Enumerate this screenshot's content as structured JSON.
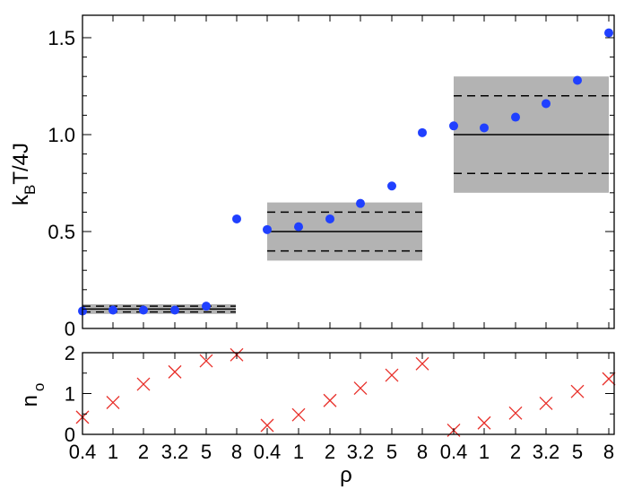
{
  "chart_data": [
    {
      "type": "scatter",
      "ylabel_main": "k",
      "ylabel_sub": "B",
      "ylabel_tail": "T/4J",
      "ylim": [
        0,
        1.5
      ],
      "yticks": [
        "0",
        "0.5",
        "1.0",
        "1.5"
      ],
      "series_color": "#2040ff",
      "groups": [
        {
          "x": [
            "0.4",
            "1",
            "2",
            "3.2",
            "5",
            "8"
          ],
          "values": [
            0.09,
            0.095,
            0.095,
            0.095,
            0.115,
            0.565
          ],
          "band": {
            "low": 0.075,
            "high": 0.125,
            "solid": 0.1,
            "dash_low": 0.085,
            "dash_high": 0.115
          }
        },
        {
          "x": [
            "0.4",
            "1",
            "2",
            "3.2",
            "5",
            "8"
          ],
          "values": [
            0.51,
            0.525,
            0.565,
            0.645,
            0.735,
            1.01
          ],
          "band": {
            "low": 0.35,
            "high": 0.65,
            "solid": 0.5,
            "dash_low": 0.4,
            "dash_high": 0.6
          }
        },
        {
          "x": [
            "0.4",
            "1",
            "2",
            "3.2",
            "5",
            "8"
          ],
          "values": [
            1.045,
            1.035,
            1.09,
            1.16,
            1.28,
            1.525
          ],
          "band": {
            "low": 0.7,
            "high": 1.3,
            "solid": 1.0,
            "dash_low": 0.8,
            "dash_high": 1.2
          }
        }
      ],
      "grid": false,
      "band_color": "#b3b3b3"
    },
    {
      "type": "scatter",
      "ylabel_main": "n",
      "ylabel_sub": "o",
      "xlabel": "ρ",
      "ylim": [
        0,
        2
      ],
      "yticks": [
        "0",
        "1",
        "2"
      ],
      "marker": "x",
      "series_color": "#e8302a",
      "groups": [
        {
          "x": [
            "0.4",
            "1",
            "2",
            "3.2",
            "5",
            "8"
          ],
          "values": [
            0.42,
            0.78,
            1.23,
            1.53,
            1.8,
            1.95
          ]
        },
        {
          "x": [
            "0.4",
            "1",
            "2",
            "3.2",
            "5",
            "8"
          ],
          "values": [
            0.22,
            0.48,
            0.83,
            1.13,
            1.45,
            1.73
          ]
        },
        {
          "x": [
            "0.4",
            "1",
            "2",
            "3.2",
            "5",
            "8"
          ],
          "values": [
            0.1,
            0.28,
            0.52,
            0.76,
            1.05,
            1.36
          ]
        }
      ],
      "grid": false
    }
  ]
}
